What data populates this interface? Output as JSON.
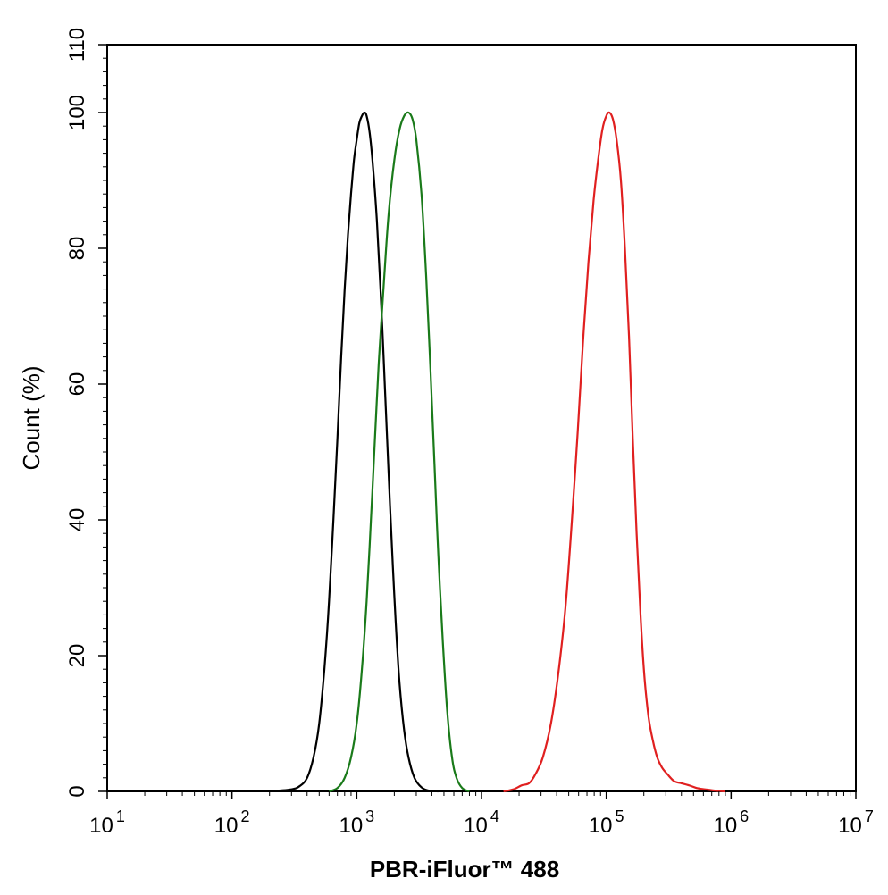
{
  "chart_data": {
    "type": "line",
    "title": "",
    "xlabel": "PBR-iFluor™ 488",
    "ylabel": "Count  (%)",
    "x_scale": "log",
    "xlim": [
      10,
      10000000
    ],
    "ylim": [
      0,
      110
    ],
    "x_ticks": [
      {
        "value": 10,
        "base": "10",
        "exp": "1"
      },
      {
        "value": 100,
        "base": "10",
        "exp": "2"
      },
      {
        "value": 1000,
        "base": "10",
        "exp": "3"
      },
      {
        "value": 10000,
        "base": "10",
        "exp": "4"
      },
      {
        "value": 100000,
        "base": "10",
        "exp": "5"
      },
      {
        "value": 1000000,
        "base": "10",
        "exp": "6"
      },
      {
        "value": 10000000,
        "base": "10",
        "exp": "7"
      }
    ],
    "y_ticks": [
      {
        "value": 0,
        "label": "0"
      },
      {
        "value": 20,
        "label": "20"
      },
      {
        "value": 40,
        "label": "40"
      },
      {
        "value": 60,
        "label": "60"
      },
      {
        "value": 80,
        "label": "80"
      },
      {
        "value": 100,
        "label": "100"
      },
      {
        "value": 110,
        "label": "110"
      }
    ],
    "grid": false,
    "legend": "none",
    "series": [
      {
        "color": "#000000",
        "points": [
          [
            200,
            0
          ],
          [
            300,
            0.3
          ],
          [
            350,
            0.8
          ],
          [
            400,
            2
          ],
          [
            450,
            5
          ],
          [
            500,
            10
          ],
          [
            550,
            18
          ],
          [
            600,
            28
          ],
          [
            650,
            40
          ],
          [
            700,
            52
          ],
          [
            750,
            64
          ],
          [
            800,
            74
          ],
          [
            850,
            82
          ],
          [
            900,
            88
          ],
          [
            950,
            93
          ],
          [
            1000,
            96
          ],
          [
            1050,
            98.5
          ],
          [
            1100,
            99.5
          ],
          [
            1150,
            100
          ],
          [
            1200,
            99.5
          ],
          [
            1270,
            97
          ],
          [
            1350,
            92
          ],
          [
            1450,
            84
          ],
          [
            1550,
            74
          ],
          [
            1650,
            63
          ],
          [
            1750,
            52
          ],
          [
            1850,
            42
          ],
          [
            1950,
            33
          ],
          [
            2050,
            25
          ],
          [
            2200,
            16
          ],
          [
            2400,
            9
          ],
          [
            2600,
            5
          ],
          [
            2900,
            2
          ],
          [
            3300,
            0.6
          ],
          [
            3800,
            0.1
          ],
          [
            4500,
            0
          ]
        ]
      },
      {
        "color": "#1a7a1a",
        "points": [
          [
            600,
            0
          ],
          [
            700,
            0.5
          ],
          [
            800,
            2
          ],
          [
            900,
            5
          ],
          [
            1000,
            10
          ],
          [
            1100,
            18
          ],
          [
            1200,
            28
          ],
          [
            1300,
            40
          ],
          [
            1400,
            52
          ],
          [
            1500,
            63
          ],
          [
            1650,
            75
          ],
          [
            1800,
            85
          ],
          [
            2000,
            93
          ],
          [
            2200,
            97.5
          ],
          [
            2400,
            99.5
          ],
          [
            2600,
            100
          ],
          [
            2800,
            99
          ],
          [
            3000,
            96
          ],
          [
            3300,
            88
          ],
          [
            3600,
            76
          ],
          [
            3900,
            62
          ],
          [
            4200,
            48
          ],
          [
            4500,
            35
          ],
          [
            4900,
            22
          ],
          [
            5300,
            12
          ],
          [
            5800,
            5
          ],
          [
            6300,
            2
          ],
          [
            7000,
            0.5
          ],
          [
            8000,
            0
          ]
        ]
      },
      {
        "color": "#e02020",
        "points": [
          [
            15000,
            0
          ],
          [
            18000,
            0.3
          ],
          [
            21000,
            0.9
          ],
          [
            24000,
            1.2
          ],
          [
            27000,
            2.5
          ],
          [
            31000,
            5
          ],
          [
            36000,
            10
          ],
          [
            41000,
            17
          ],
          [
            47000,
            27
          ],
          [
            53000,
            40
          ],
          [
            59000,
            53
          ],
          [
            65000,
            66
          ],
          [
            72000,
            78
          ],
          [
            79000,
            87
          ],
          [
            86000,
            93
          ],
          [
            93000,
            97.5
          ],
          [
            100000,
            99.5
          ],
          [
            106000,
            100
          ],
          [
            113000,
            99
          ],
          [
            121000,
            96
          ],
          [
            131000,
            90
          ],
          [
            141000,
            80
          ],
          [
            152000,
            67
          ],
          [
            163000,
            52
          ],
          [
            175000,
            38
          ],
          [
            188000,
            26
          ],
          [
            202000,
            17
          ],
          [
            218000,
            11
          ],
          [
            236000,
            7.5
          ],
          [
            256000,
            5
          ],
          [
            280000,
            3.5
          ],
          [
            310000,
            2.5
          ],
          [
            350000,
            1.5
          ],
          [
            400000,
            1.2
          ],
          [
            460000,
            0.9
          ],
          [
            530000,
            0.5
          ],
          [
            620000,
            0.3
          ],
          [
            750000,
            0.1
          ],
          [
            900000,
            0
          ]
        ]
      }
    ]
  }
}
